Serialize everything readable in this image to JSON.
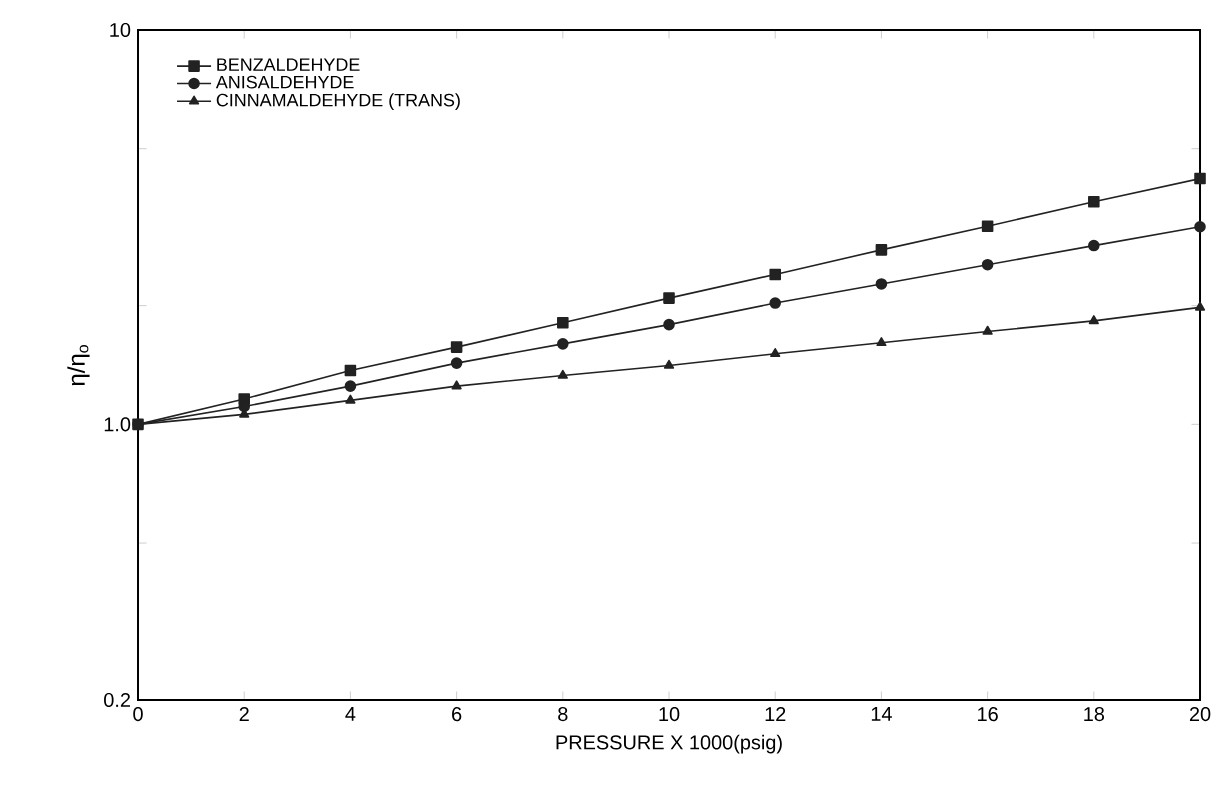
{
  "chart_data": {
    "type": "line",
    "xlabel": "PRESSURE X 1000(psig)",
    "ylabel": "η/η$_{o}$",
    "log": "y",
    "xlim": [
      0,
      20
    ],
    "ylim": [
      0.2,
      10
    ],
    "xticks": [
      {
        "value": 0,
        "label": "0"
      },
      2,
      4,
      6,
      8,
      10,
      12,
      14,
      16,
      18,
      20
    ],
    "yticks": [
      0.2,
      {
        "value": 0.5,
        "label": null
      },
      {
        "value": 1,
        "label": "1.0"
      },
      {
        "value": 2,
        "label": null
      },
      {
        "value": 5,
        "label": null
      },
      10
    ],
    "x": [
      0,
      2,
      4,
      6,
      8,
      10,
      12,
      14,
      16,
      18,
      20
    ],
    "series": [
      {
        "name": "BENZALDEHYDE",
        "color": "#222222",
        "marker": "square",
        "values": [
          1.0,
          1.16,
          1.37,
          1.57,
          1.81,
          2.09,
          2.4,
          2.77,
          3.18,
          3.67,
          4.2
        ]
      },
      {
        "name": "ANISALDEHYDE",
        "color": "#222222",
        "marker": "circle",
        "values": [
          1.0,
          1.11,
          1.25,
          1.43,
          1.6,
          1.79,
          2.03,
          2.27,
          2.54,
          2.84,
          3.17
        ]
      },
      {
        "name": "CINNAMALDEHYDE (TRANS)",
        "color": "#222222",
        "marker": "triangle",
        "values": [
          1.0,
          1.06,
          1.15,
          1.25,
          1.33,
          1.41,
          1.51,
          1.61,
          1.72,
          1.83,
          1.98
        ]
      }
    ],
    "grid": false,
    "legend": "top left",
    "line_style": "solid"
  }
}
